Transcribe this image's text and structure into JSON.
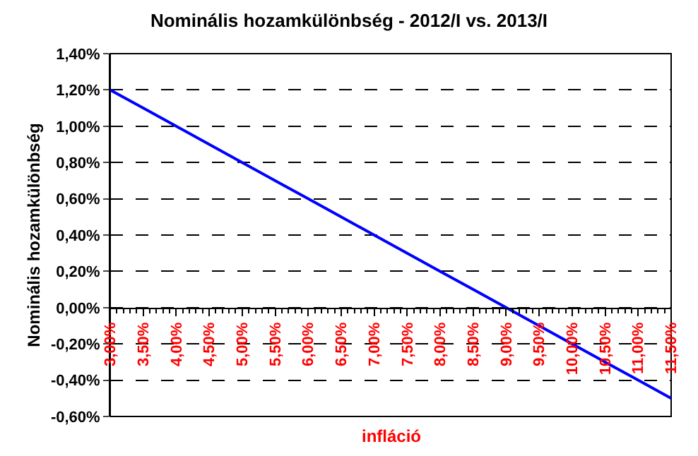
{
  "chart_data": {
    "type": "line",
    "title": "Nominális hozamkülönbség - 2012/I vs. 2013/I",
    "xlabel": "infláció",
    "ylabel": "Nominális hozamkülönbség",
    "x": [
      3.0,
      3.5,
      4.0,
      4.5,
      5.0,
      5.5,
      6.0,
      6.5,
      7.0,
      7.5,
      8.0,
      8.5,
      9.0,
      9.5,
      10.0,
      10.5,
      11.0,
      11.5
    ],
    "series": [
      {
        "color": "#0000ff",
        "values": [
          1.2,
          1.1,
          1.0,
          0.9,
          0.8,
          0.7,
          0.6,
          0.5,
          0.4,
          0.3,
          0.2,
          0.1,
          0.0,
          -0.1,
          -0.2,
          -0.3,
          -0.4,
          -0.5
        ]
      }
    ],
    "xlim": [
      3.0,
      11.5
    ],
    "xticks": [
      {
        "value": 3.0,
        "label": "3,00%"
      },
      {
        "value": 3.5,
        "label": "3,50%"
      },
      {
        "value": 4.0,
        "label": "4,00%"
      },
      {
        "value": 4.5,
        "label": "4,50%"
      },
      {
        "value": 5.0,
        "label": "5,00%"
      },
      {
        "value": 5.5,
        "label": "5,50%"
      },
      {
        "value": 6.0,
        "label": "6,00%"
      },
      {
        "value": 6.5,
        "label": "6,50%"
      },
      {
        "value": 7.0,
        "label": "7,00%"
      },
      {
        "value": 7.5,
        "label": "7,50%"
      },
      {
        "value": 8.0,
        "label": "8,00%"
      },
      {
        "value": 8.5,
        "label": "8,50%"
      },
      {
        "value": 9.0,
        "label": "9,00%"
      },
      {
        "value": 9.5,
        "label": "9,50%"
      },
      {
        "value": 10.0,
        "label": "10,00%"
      },
      {
        "value": 10.5,
        "label": "10,50%"
      },
      {
        "value": 11.0,
        "label": "11,00%"
      },
      {
        "value": 11.5,
        "label": "11,50%"
      }
    ],
    "ylim": [
      -0.6,
      1.4
    ],
    "yticks": [
      {
        "value": -0.6,
        "label": "-0,60%"
      },
      {
        "value": -0.4,
        "label": "-0,40%"
      },
      {
        "value": -0.2,
        "label": "-0,20%"
      },
      {
        "value": 0.0,
        "label": "0,00%"
      },
      {
        "value": 0.2,
        "label": "0,20%"
      },
      {
        "value": 0.4,
        "label": "0,40%"
      },
      {
        "value": 0.6,
        "label": "0,60%"
      },
      {
        "value": 0.8,
        "label": "0,80%"
      },
      {
        "value": 1.0,
        "label": "1,00%"
      },
      {
        "value": 1.2,
        "label": "1,20%"
      },
      {
        "value": 1.4,
        "label": "1,40%"
      }
    ],
    "grid": "y",
    "marker": "none",
    "line_style": "solid"
  }
}
